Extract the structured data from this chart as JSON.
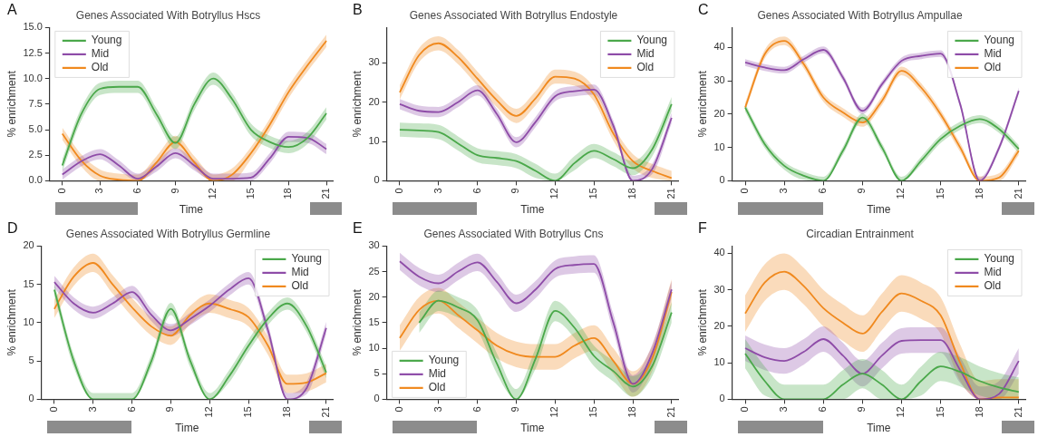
{
  "chart_data": [
    {
      "type": "line",
      "title": "Genes Associated With Botryllus Hscs",
      "xlabel": "Time",
      "ylabel": "% enrichment",
      "annotations": [
        "A"
      ],
      "legend": "top left",
      "grid": false,
      "marker": "none",
      "line_style": "solid",
      "x": [
        0,
        1.5,
        3,
        4.5,
        6,
        7.5,
        9,
        10.5,
        12,
        13.5,
        15,
        16.5,
        18,
        19.5,
        21
      ],
      "xlim": [
        -1,
        21.5
      ],
      "xticks": [
        0,
        3,
        6,
        9,
        12,
        15,
        18,
        21
      ],
      "ylim": [
        0,
        15
      ],
      "yticks": [
        {
          "value": 0,
          "label": "0.0"
        },
        2.5,
        {
          "value": 5,
          "label": "5.0"
        },
        7.5,
        {
          "value": 10,
          "label": "10.0"
        },
        12.5,
        {
          "value": 15,
          "label": "15.0"
        }
      ],
      "series": [
        {
          "name": "Young",
          "color": "#4aa84a",
          "values": [
            1.5,
            6.5,
            9,
            9.2,
            9.2,
            6.5,
            3.7,
            7.5,
            10,
            8,
            5,
            3.8,
            3.3,
            4.2,
            6.6
          ],
          "lower": [
            0.9,
            5.9,
            8.4,
            8.6,
            8.6,
            5.9,
            3.1,
            6.9,
            9.4,
            7.4,
            4.4,
            3.2,
            2.7,
            3.6,
            6.0
          ],
          "upper": [
            2.1,
            7.1,
            9.6,
            9.8,
            9.8,
            7.1,
            4.3,
            8.1,
            10.6,
            8.6,
            5.6,
            4.4,
            3.9,
            4.8,
            7.2
          ]
        },
        {
          "name": "Mid",
          "color": "#8e4ca8",
          "values": [
            0.6,
            1.9,
            2.6,
            1.5,
            0.2,
            1.4,
            2.7,
            1.5,
            0.2,
            0.2,
            0.3,
            2.2,
            4.3,
            4.2,
            3.1
          ],
          "lower": [
            0.1,
            1.4,
            2.1,
            1.0,
            0,
            0.9,
            2.2,
            1.0,
            0,
            0,
            0,
            1.7,
            3.8,
            3.7,
            2.6
          ],
          "upper": [
            1.1,
            2.4,
            3.1,
            2.0,
            0.7,
            1.9,
            3.2,
            2.0,
            0.7,
            0.7,
            0.8,
            2.7,
            4.8,
            4.7,
            3.6
          ]
        },
        {
          "name": "Old",
          "color": "#f0891e",
          "values": [
            4.6,
            2,
            0.5,
            0.1,
            0,
            1.8,
            3.8,
            1.8,
            0,
            0.6,
            2.7,
            5.5,
            8.7,
            11.3,
            13.7
          ],
          "lower": [
            4.0,
            1.4,
            0,
            0,
            0,
            1.2,
            3.2,
            1.2,
            0,
            0,
            2.1,
            4.9,
            8.1,
            10.7,
            13.1
          ],
          "upper": [
            5.2,
            2.6,
            1.1,
            0.7,
            0.6,
            2.4,
            4.4,
            2.4,
            0.6,
            1.2,
            3.3,
            6.1,
            9.3,
            11.9,
            14.3
          ]
        }
      ]
    },
    {
      "type": "line",
      "title": "Genes Associated With Botryllus Endostyle",
      "xlabel": "Time",
      "ylabel": "% enrichment",
      "annotations": [
        "B"
      ],
      "legend": "top right",
      "grid": false,
      "marker": "none",
      "line_style": "solid",
      "x": [
        0,
        1.5,
        3,
        4.5,
        6,
        7.5,
        9,
        10.5,
        12,
        13.5,
        15,
        16.5,
        18,
        19.5,
        21
      ],
      "xlim": [
        -1,
        21.5
      ],
      "xticks": [
        0,
        3,
        6,
        9,
        12,
        15,
        18,
        21
      ],
      "ylim": [
        0,
        39
      ],
      "yticks": [
        0,
        10,
        20,
        30
      ],
      "series": [
        {
          "name": "Young",
          "color": "#4aa84a",
          "values": [
            13,
            12.8,
            12.4,
            9.5,
            6.5,
            5.8,
            5,
            2.5,
            0,
            4.5,
            7.6,
            5.5,
            3.2,
            8,
            19.5
          ],
          "lower": [
            11.2,
            11,
            10.6,
            7.7,
            4.7,
            4,
            3.2,
            0.7,
            0,
            2.7,
            5.8,
            3.7,
            1.4,
            6.2,
            17.7
          ],
          "upper": [
            14.8,
            14.6,
            14.2,
            11.3,
            8.3,
            7.6,
            6.8,
            4.3,
            1.8,
            6.3,
            9.4,
            7.3,
            5,
            9.8,
            21.3
          ]
        },
        {
          "name": "Mid",
          "color": "#8e4ca8",
          "values": [
            19.5,
            17.8,
            17.5,
            20,
            23,
            17,
            9.8,
            15,
            21.5,
            22.8,
            23.2,
            14,
            0,
            3,
            16
          ],
          "lower": [
            18.2,
            16.5,
            16.2,
            18.7,
            21.7,
            15.7,
            8.5,
            13.7,
            20.2,
            21.5,
            21.9,
            12.7,
            0,
            1.7,
            14.7
          ],
          "upper": [
            20.8,
            19.1,
            18.8,
            21.3,
            24.3,
            18.3,
            11.1,
            16.3,
            22.8,
            24.1,
            24.5,
            15.3,
            1.3,
            4.3,
            17.3
          ]
        },
        {
          "name": "Old",
          "color": "#f0891e",
          "values": [
            22.5,
            32,
            35,
            31.5,
            26,
            20.5,
            16.5,
            21,
            26.5,
            26,
            22,
            12,
            5,
            2.5,
            0.7
          ],
          "lower": [
            20.7,
            30.2,
            33.2,
            29.7,
            24.2,
            18.7,
            14.7,
            19.2,
            24.7,
            24.2,
            20.2,
            10.2,
            3.2,
            0.7,
            0
          ],
          "upper": [
            24.3,
            33.8,
            36.8,
            33.3,
            27.8,
            22.3,
            18.3,
            22.8,
            28.3,
            27.8,
            23.8,
            13.8,
            6.8,
            4.3,
            2.5
          ]
        }
      ]
    },
    {
      "type": "line",
      "title": "Genes Associated With Botryllus Ampullae",
      "xlabel": "Time",
      "ylabel": "% enrichment",
      "annotations": [
        "C"
      ],
      "legend": "top right",
      "grid": false,
      "marker": "none",
      "line_style": "solid",
      "x": [
        0,
        1.5,
        3,
        4.5,
        6,
        7.5,
        9,
        10.5,
        12,
        13.5,
        15,
        16.5,
        18,
        19.5,
        21
      ],
      "xlim": [
        -1,
        21.5
      ],
      "xticks": [
        0,
        3,
        6,
        9,
        12,
        15,
        18,
        21
      ],
      "ylim": [
        0,
        46
      ],
      "yticks": [
        0,
        10,
        20,
        30,
        40
      ],
      "series": [
        {
          "name": "Young",
          "color": "#4aa84a",
          "values": [
            22,
            11,
            4.5,
            1.5,
            0,
            9,
            19,
            10,
            0,
            6,
            12.5,
            16.5,
            18.5,
            15.5,
            9.5
          ],
          "lower": [
            20.8,
            9.8,
            3.3,
            0.3,
            0,
            7.8,
            17.8,
            8.8,
            0,
            4.8,
            11.3,
            15.3,
            17.3,
            14.3,
            8.3
          ],
          "upper": [
            23.2,
            12.2,
            5.7,
            2.7,
            1.2,
            10.2,
            20.2,
            11.2,
            1.2,
            7.2,
            13.7,
            17.7,
            19.7,
            16.7,
            10.7
          ]
        },
        {
          "name": "Mid",
          "color": "#8e4ca8",
          "values": [
            35.5,
            34,
            33.2,
            36.5,
            39.3,
            31,
            21,
            29,
            36,
            37.5,
            38.2,
            23,
            0,
            10,
            27
          ],
          "lower": [
            34.5,
            33,
            32.2,
            35.5,
            38.3,
            30,
            20,
            28,
            35,
            36.5,
            37.2,
            22,
            0,
            9,
            26
          ],
          "upper": [
            36.5,
            35,
            34.2,
            37.5,
            40.3,
            32,
            22,
            30,
            37,
            38.5,
            39.2,
            24,
            1,
            11,
            28
          ]
        },
        {
          "name": "Old",
          "color": "#f0891e",
          "values": [
            22,
            38,
            42,
            35,
            25,
            20.5,
            17.5,
            24,
            33,
            28,
            20,
            10,
            0,
            1,
            9
          ],
          "lower": [
            20.7,
            36.7,
            40.7,
            33.7,
            23.7,
            19.2,
            16.2,
            22.7,
            31.7,
            26.7,
            18.7,
            8.7,
            0,
            0,
            7.7
          ],
          "upper": [
            23.3,
            39.3,
            43.3,
            36.3,
            26.3,
            21.8,
            18.8,
            25.3,
            34.3,
            29.3,
            21.3,
            11.3,
            1.3,
            2.3,
            10.3
          ]
        }
      ]
    },
    {
      "type": "line",
      "title": "Genes Associated With Botryllus Germline",
      "xlabel": "Time",
      "ylabel": "% enrichment",
      "annotations": [
        "D"
      ],
      "legend": "top right",
      "grid": false,
      "marker": "none",
      "line_style": "solid",
      "x": [
        0,
        1.5,
        3,
        4.5,
        6,
        7.5,
        9,
        10.5,
        12,
        13.5,
        15,
        16.5,
        18,
        19.5,
        21
      ],
      "xlim": [
        -1,
        21.5
      ],
      "xticks": [
        0,
        3,
        6,
        9,
        12,
        15,
        18,
        21
      ],
      "ylim": [
        0,
        20
      ],
      "yticks": [
        0,
        5,
        10,
        15,
        20
      ],
      "series": [
        {
          "name": "Young",
          "color": "#4aa84a",
          "values": [
            14.3,
            5,
            0,
            0,
            0,
            5,
            11.8,
            5,
            0,
            3,
            7,
            10.5,
            12.5,
            9.5,
            3.5
          ],
          "lower": [
            13.5,
            4.2,
            0,
            0,
            0,
            4.2,
            11,
            4.2,
            0,
            2.2,
            6.2,
            9.7,
            11.7,
            8.7,
            2.7
          ],
          "upper": [
            15.1,
            5.8,
            0.8,
            0.8,
            0.8,
            5.8,
            12.6,
            5.8,
            0.8,
            3.8,
            7.8,
            11.3,
            13.3,
            10.3,
            4.3
          ]
        },
        {
          "name": "Mid",
          "color": "#8e4ca8",
          "values": [
            15.3,
            12.5,
            11.3,
            12.5,
            14,
            11,
            9,
            10.5,
            12.2,
            14.3,
            15.8,
            9,
            0,
            1.5,
            9.3
          ],
          "lower": [
            14.5,
            11.7,
            10.5,
            11.7,
            13.2,
            10.2,
            8.2,
            9.7,
            11.4,
            13.5,
            15,
            8.2,
            0,
            0.7,
            8.5
          ],
          "upper": [
            16.1,
            13.3,
            12.1,
            13.3,
            14.8,
            11.8,
            9.8,
            11.3,
            13,
            15.1,
            16.6,
            9.8,
            0.8,
            2.3,
            10.1
          ]
        },
        {
          "name": "Old",
          "color": "#f0891e",
          "values": [
            11.8,
            16,
            17.8,
            15,
            12,
            9.5,
            8.3,
            11,
            12.5,
            11.8,
            10.7,
            7,
            2,
            2.2,
            3.4
          ],
          "lower": [
            10.6,
            14.8,
            16.6,
            13.8,
            10.8,
            8.3,
            7.1,
            9.8,
            11.3,
            10.6,
            9.5,
            5.8,
            0.8,
            1,
            2.2
          ],
          "upper": [
            13,
            17.2,
            19,
            16.2,
            13.2,
            10.7,
            9.5,
            12.2,
            13.7,
            13,
            11.9,
            8.2,
            3.2,
            3.4,
            4.6
          ]
        }
      ]
    },
    {
      "type": "line",
      "title": "Genes Associated With Botryllus Cns",
      "xlabel": "Time",
      "ylabel": "% enrichment",
      "annotations": [
        "E"
      ],
      "legend": "bottom left",
      "grid": false,
      "marker": "none",
      "line_style": "solid",
      "x": [
        0,
        1.5,
        3,
        4.5,
        6,
        7.5,
        9,
        10.5,
        12,
        13.5,
        15,
        16.5,
        18,
        19.5,
        21
      ],
      "xlim": [
        -1,
        21.5
      ],
      "xticks": [
        0,
        3,
        6,
        9,
        12,
        15,
        18,
        21
      ],
      "ylim": [
        0,
        30
      ],
      "yticks": [
        0,
        5,
        10,
        15,
        20,
        25,
        30
      ],
      "series": [
        {
          "name": "Young",
          "color": "#4aa84a",
          "values": [
            null,
            15,
            19.3,
            18,
            15.5,
            7,
            0,
            8,
            17.3,
            14,
            8.5,
            5.5,
            2.5,
            6.5,
            17
          ],
          "lower": [
            null,
            13,
            17.3,
            16,
            13.5,
            5,
            0,
            6,
            15.3,
            12,
            6.5,
            3.5,
            0.5,
            4.5,
            15
          ],
          "upper": [
            null,
            17,
            21.3,
            20,
            17.5,
            9,
            2,
            10,
            19.3,
            16,
            10.5,
            7.5,
            4.5,
            8.5,
            19
          ]
        },
        {
          "name": "Mid",
          "color": "#8e4ca8",
          "values": [
            27,
            24,
            22.7,
            25,
            26.8,
            23,
            18.8,
            21.5,
            25.5,
            26.3,
            26.5,
            15,
            3,
            9,
            21.5
          ],
          "lower": [
            25.3,
            22.3,
            21,
            23.3,
            25.1,
            21.3,
            17.1,
            19.8,
            23.8,
            24.6,
            24.8,
            13.3,
            1.3,
            7.3,
            19.8
          ],
          "upper": [
            28.7,
            25.7,
            24.4,
            26.7,
            28.5,
            24.7,
            20.5,
            23.2,
            27.2,
            28,
            28.2,
            16.7,
            4.7,
            10.7,
            23.2
          ]
        },
        {
          "name": "Old",
          "color": "#f0891e",
          "values": [
            12,
            17.5,
            19.3,
            16.5,
            13.5,
            10.5,
            8.8,
            8.3,
            8.3,
            10.5,
            12,
            7.5,
            3,
            8,
            21
          ],
          "lower": [
            9.5,
            15,
            16.8,
            14,
            11,
            8,
            6.3,
            5.8,
            5.8,
            8,
            9.5,
            5,
            0.5,
            5.5,
            18.5
          ],
          "upper": [
            14.5,
            20,
            21.8,
            19,
            16,
            13,
            11.3,
            10.8,
            10.8,
            13,
            14.5,
            10,
            5.5,
            10.5,
            23.5
          ]
        }
      ]
    },
    {
      "type": "line",
      "title": "Circadian Entrainment",
      "xlabel": "Time",
      "ylabel": "% enrichment",
      "annotations": [
        "F"
      ],
      "legend": "top right",
      "grid": false,
      "marker": "none",
      "line_style": "solid",
      "x": [
        0,
        1.5,
        3,
        4.5,
        6,
        7.5,
        9,
        10.5,
        12,
        13.5,
        15,
        16.5,
        18,
        19.5,
        21
      ],
      "xlim": [
        -1,
        21.5
      ],
      "xticks": [
        0,
        3,
        6,
        9,
        12,
        15,
        18,
        21
      ],
      "ylim": [
        0,
        42
      ],
      "yticks": [
        0,
        10,
        20,
        30,
        40
      ],
      "series": [
        {
          "name": "Young",
          "color": "#4aa84a",
          "values": [
            12.5,
            5,
            0,
            0,
            0,
            4,
            7,
            4,
            0,
            5,
            9,
            7.5,
            5,
            3.2,
            2
          ],
          "lower": [
            8.5,
            1,
            0,
            0,
            0,
            0,
            3,
            0,
            0,
            1,
            5,
            3.5,
            1,
            0,
            0
          ],
          "upper": [
            16.5,
            9,
            4,
            4,
            4,
            8,
            11,
            8,
            4,
            9,
            13,
            11.5,
            9,
            7.2,
            6
          ]
        },
        {
          "name": "Mid",
          "color": "#8e4ca8",
          "values": [
            14,
            11.5,
            10.5,
            13,
            16.5,
            12,
            7,
            12,
            16,
            16.2,
            16.2,
            8,
            0,
            1.5,
            10.5
          ],
          "lower": [
            10.5,
            8,
            7,
            9.5,
            13,
            8.5,
            3.5,
            8.5,
            12.5,
            12.7,
            12.7,
            4.5,
            0,
            0,
            7
          ],
          "upper": [
            17.5,
            15,
            14,
            16.5,
            20,
            15.5,
            10.5,
            15.5,
            19.5,
            19.7,
            19.7,
            11.5,
            3.5,
            5,
            14
          ]
        },
        {
          "name": "Old",
          "color": "#f0891e",
          "values": [
            23.5,
            32,
            35,
            31,
            25,
            21,
            18,
            24,
            29,
            27,
            23,
            10,
            0,
            0.5,
            0.5
          ],
          "lower": [
            18.5,
            27,
            30,
            26,
            20,
            16,
            13,
            19,
            24,
            22,
            18,
            5,
            0,
            0,
            0
          ],
          "upper": [
            28.5,
            37,
            40,
            36,
            30,
            26,
            23,
            29,
            34,
            32,
            28,
            15,
            5,
            5.5,
            5.5
          ]
        }
      ]
    }
  ]
}
